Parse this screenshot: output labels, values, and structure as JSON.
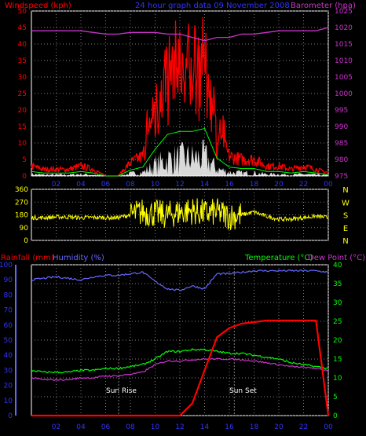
{
  "colors": {
    "background": "#000000",
    "frame": "#ffffff",
    "grid": "#808080",
    "windspeed": "#ff0000",
    "gust_fill": "#ffffff",
    "wind_avg": "#00ff00",
    "barometer": "#cc33cc",
    "title": "#3333ff",
    "direction": "#ffff00",
    "rainfall": "#ff0000",
    "humidity": "#6666ff",
    "temperature": "#00ff00",
    "dewpoint": "#cc33cc",
    "label_blue": "#3333ff",
    "label_green": "#00ff00",
    "label_red": "#ff0000",
    "label_magenta": "#cc33cc",
    "label_yellow": "#ffff00"
  },
  "header": {
    "windspeed_label": "Windspeed (kph)",
    "title": "24 hour graph data  09 November 2008",
    "barometer_label": "Barometer (hpa)"
  },
  "wind_panel": {
    "left_ticks": [
      "50",
      "45",
      "40",
      "35",
      "30",
      "25",
      "20",
      "15",
      "10",
      "5",
      "0"
    ],
    "right_ticks": [
      "1025",
      "1020",
      "1015",
      "1010",
      "1005",
      "1000",
      "995",
      "990",
      "985",
      "980",
      "975"
    ],
    "time_ticks": [
      "02",
      "04",
      "06",
      "08",
      "10",
      "12",
      "14",
      "16",
      "18",
      "20",
      "22",
      "00"
    ]
  },
  "direction_panel": {
    "left_ticks": [
      "360",
      "270",
      "180",
      "90",
      "0"
    ],
    "compass": [
      "N",
      "W",
      "S",
      "E",
      "N"
    ]
  },
  "lower_panel": {
    "rain_label": "Rainfall (mm)",
    "humidity_label": "Humidity (%)",
    "temp_label": "Temperature (°C)",
    "dew_label": "Dew Point (°C)",
    "left_ticks": [
      "100",
      "90",
      "80",
      "70",
      "60",
      "50",
      "40",
      "30",
      "20",
      "10",
      "0"
    ],
    "right_ticks": [
      "40",
      "35",
      "30",
      "25",
      "20",
      "15",
      "10",
      "5",
      "0"
    ],
    "time_ticks": [
      "02",
      "04",
      "06",
      "08",
      "10",
      "12",
      "14",
      "16",
      "18",
      "20",
      "22",
      "00"
    ],
    "sunrise_label": "Sun Rise",
    "sunset_label": "Sun Set"
  },
  "chart_data": [
    {
      "type": "line",
      "title": "24 hour graph data  09 November 2008",
      "xlabel": "",
      "ylabel": "Windspeed (kph)",
      "y2label": "Barometer (hpa)",
      "ylim": [
        0,
        50
      ],
      "y2lim": [
        975,
        1025
      ],
      "x": [
        "00",
        "01",
        "02",
        "03",
        "04",
        "05",
        "06",
        "07",
        "08",
        "09",
        "10",
        "11",
        "12",
        "13",
        "14",
        "15",
        "16",
        "17",
        "18",
        "19",
        "20",
        "21",
        "22",
        "23",
        "24"
      ],
      "series": [
        {
          "name": "Windspeed (kph)",
          "values": [
            3,
            2,
            2,
            2,
            3,
            2,
            0,
            0,
            4,
            6,
            18,
            28,
            30,
            30,
            32,
            12,
            6,
            5,
            5,
            3,
            3,
            2,
            3,
            2,
            1
          ]
        },
        {
          "name": "Barometer (hpa)",
          "values": [
            1019,
            1019,
            1019,
            1019,
            1019,
            1018.5,
            1018,
            1018,
            1018.5,
            1018.5,
            1018.5,
            1018,
            1018,
            1017,
            1016,
            1017,
            1017,
            1018,
            1018,
            1018.5,
            1019,
            1019,
            1019,
            1019,
            1020
          ]
        }
      ]
    },
    {
      "type": "scatter",
      "title": "",
      "ylabel": "",
      "ylim": [
        0,
        360
      ],
      "x": [
        "00",
        "01",
        "02",
        "03",
        "04",
        "05",
        "06",
        "07",
        "08",
        "09",
        "10",
        "11",
        "12",
        "13",
        "14",
        "15",
        "16",
        "17",
        "18",
        "19",
        "20",
        "21",
        "22",
        "23",
        "24"
      ],
      "series": [
        {
          "name": "",
          "values": [
            160,
            160,
            165,
            165,
            160,
            162,
            160,
            160,
            180,
            200,
            190,
            180,
            200,
            210,
            190,
            200,
            170,
            180,
            200,
            170,
            150,
            150,
            160,
            170,
            160
          ]
        }
      ]
    },
    {
      "type": "line",
      "title": "",
      "ylabel": "Rainfall (mm)",
      "y2label": "Temperature (°C)",
      "ylim": [
        0,
        100
      ],
      "y2lim": [
        0,
        40
      ],
      "x": [
        "00",
        "01",
        "02",
        "03",
        "04",
        "05",
        "06",
        "07",
        "08",
        "09",
        "10",
        "11",
        "12",
        "13",
        "14",
        "15",
        "16",
        "17",
        "18",
        "19",
        "20",
        "21",
        "22",
        "23",
        "24"
      ],
      "series": [
        {
          "name": "Humidity (%)",
          "values": [
            90,
            91,
            92,
            91,
            90,
            92,
            93,
            93,
            94,
            95,
            89,
            84,
            83,
            86,
            84,
            94,
            94,
            95,
            96,
            96,
            96,
            96,
            96,
            96,
            95
          ]
        },
        {
          "name": "Rainfall (mm)",
          "values": [
            0,
            0,
            0,
            0,
            0,
            0,
            0,
            0,
            0,
            0,
            0,
            0,
            0,
            8,
            30,
            52,
            58,
            61,
            62,
            63,
            63,
            63,
            63,
            63,
            0
          ]
        },
        {
          "name": "Temperature (°C)",
          "values": [
            12,
            11.5,
            11.5,
            11.5,
            12,
            12,
            12.5,
            12.5,
            13,
            13.5,
            15,
            17,
            17,
            17.5,
            17.5,
            17,
            16.5,
            16.5,
            16,
            15.5,
            15,
            14,
            13.5,
            13,
            12.5
          ]
        },
        {
          "name": "Dew Point (°C)",
          "values": [
            10,
            9.5,
            9.5,
            9.5,
            10,
            10,
            10.5,
            10.5,
            11,
            11.5,
            13.5,
            14.5,
            14.5,
            14.8,
            15,
            15,
            15,
            14.8,
            14.5,
            14,
            13.5,
            13,
            12.8,
            12.5,
            12
          ]
        }
      ]
    }
  ]
}
